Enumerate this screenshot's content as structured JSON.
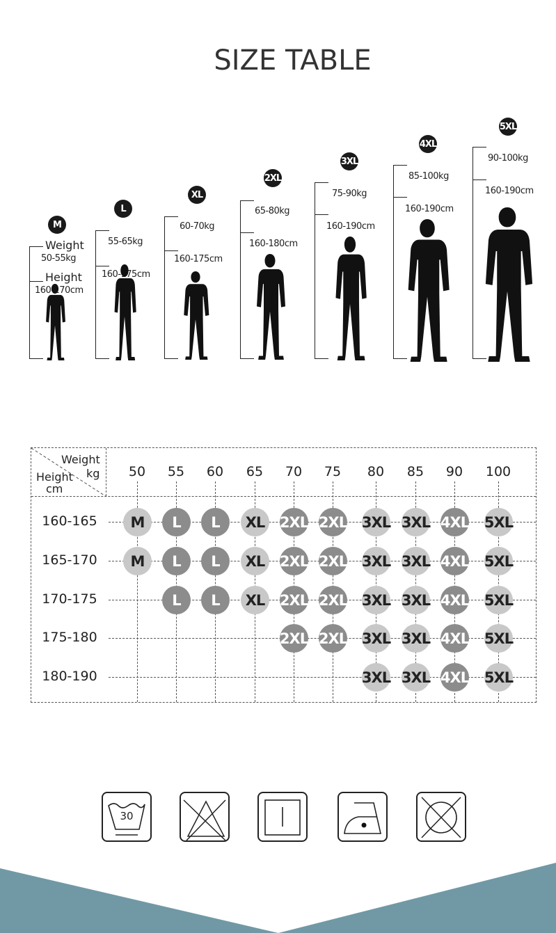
{
  "title": "SIZE TABLE",
  "figures": [
    {
      "size": "M",
      "weight": "50-55kg",
      "height": "160-170cm",
      "weight_caption": "Weight",
      "height_caption": "Height"
    },
    {
      "size": "L",
      "weight": "55-65kg",
      "height": "160-175cm"
    },
    {
      "size": "XL",
      "weight": "60-70kg",
      "height": "160-175cm"
    },
    {
      "size": "2XL",
      "weight": "65-80kg",
      "height": "160-180cm"
    },
    {
      "size": "3XL",
      "weight": "75-90kg",
      "height": "160-190cm"
    },
    {
      "size": "4XL",
      "weight": "85-100kg",
      "height": "160-190cm"
    },
    {
      "size": "5XL",
      "weight": "90-100kg",
      "height": "160-190cm"
    }
  ],
  "table": {
    "corner": {
      "weight": "Weight",
      "weight_unit": "kg",
      "height": "Height",
      "height_unit": "cm"
    },
    "weights": [
      "50",
      "55",
      "60",
      "65",
      "70",
      "75",
      "80",
      "85",
      "90",
      "100"
    ],
    "rows": [
      {
        "height": "160-165",
        "sizes": [
          "M",
          "L",
          "L",
          "XL",
          "2XL",
          "2XL",
          "3XL",
          "3XL",
          "4XL",
          "5XL"
        ]
      },
      {
        "height": "165-170",
        "sizes": [
          "M",
          "L",
          "L",
          "XL",
          "2XL",
          "2XL",
          "3XL",
          "3XL",
          "4XL",
          "5XL"
        ]
      },
      {
        "height": "170-175",
        "sizes": [
          "",
          "L",
          "L",
          "XL",
          "2XL",
          "2XL",
          "3XL",
          "3XL",
          "4XL",
          "5XL"
        ]
      },
      {
        "height": "175-180",
        "sizes": [
          "",
          "",
          "",
          "",
          "2XL",
          "2XL",
          "3XL",
          "3XL",
          "4XL",
          "5XL"
        ]
      },
      {
        "height": "180-190",
        "sizes": [
          "",
          "",
          "",
          "",
          "",
          "",
          "3XL",
          "3XL",
          "4XL",
          "5XL"
        ]
      }
    ],
    "colors": {
      "light": "#c8c8c8",
      "dark": "#8c8c8c",
      "dark_sizes": [
        "L",
        "2XL",
        "4XL"
      ]
    }
  },
  "care": [
    {
      "icon": "wash-30-icon",
      "text": "30"
    },
    {
      "icon": "do-not-bleach-icon"
    },
    {
      "icon": "line-dry-icon"
    },
    {
      "icon": "iron-low-icon"
    },
    {
      "icon": "do-not-tumble-dry-icon"
    }
  ],
  "colors": {
    "band": "#7199a5"
  }
}
